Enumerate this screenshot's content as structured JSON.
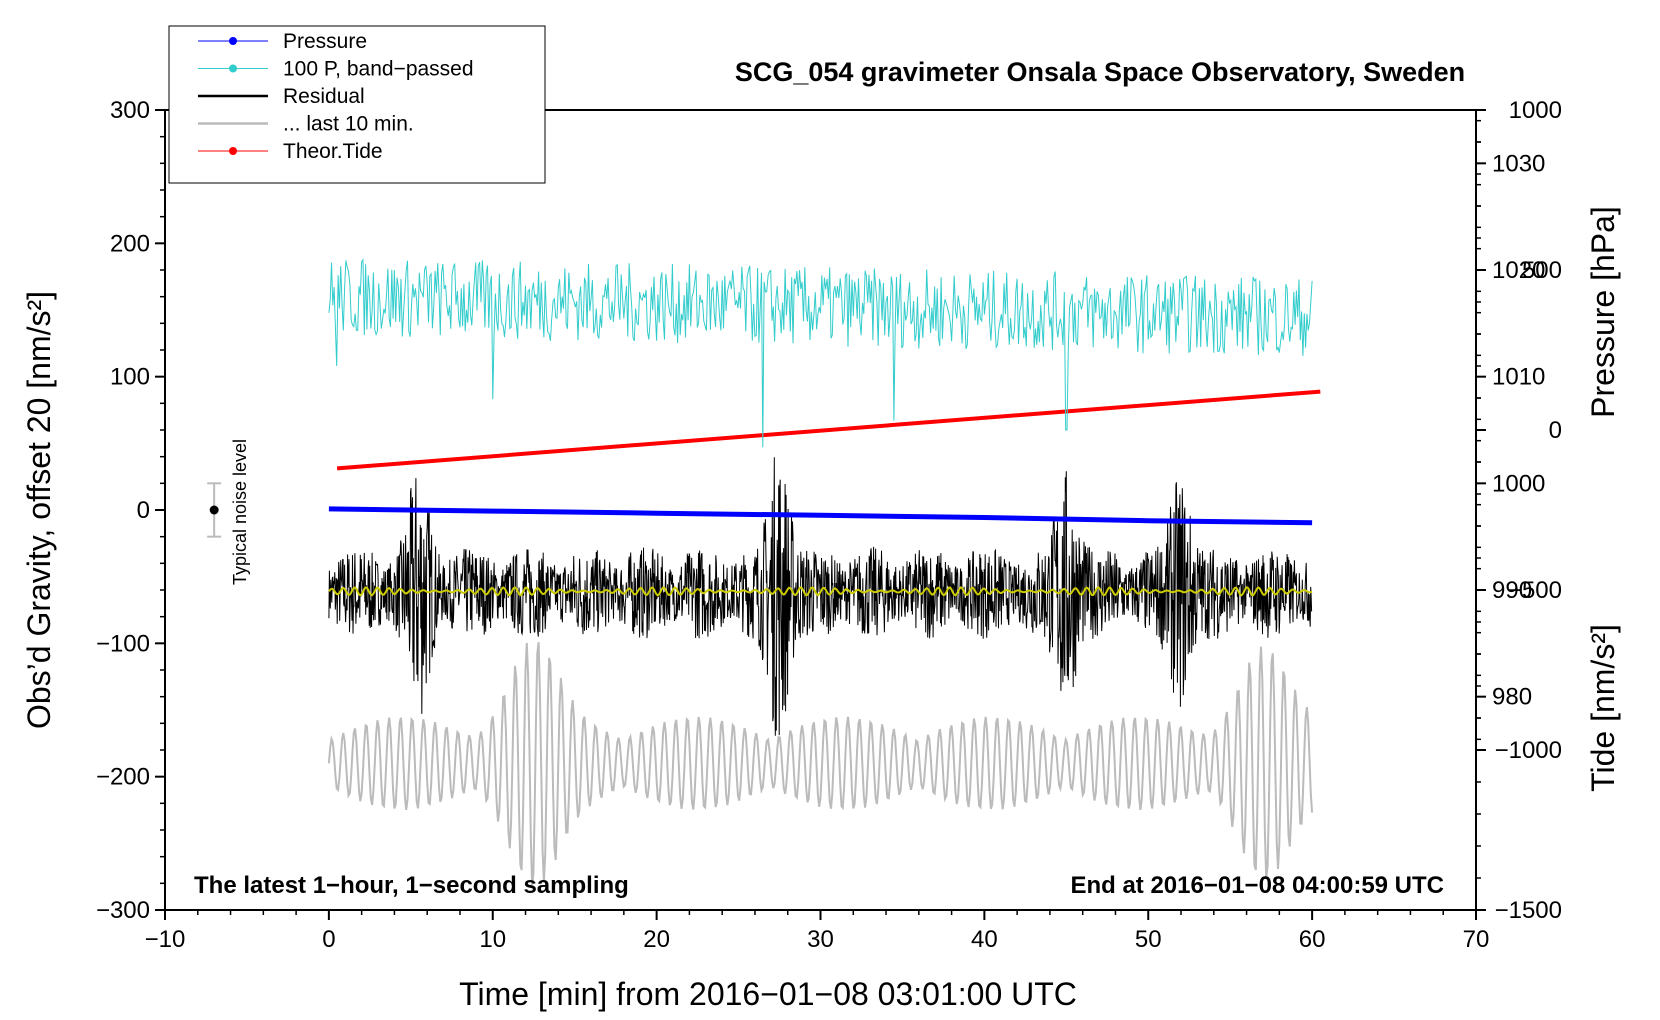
{
  "chart_data": {
    "type": "line",
    "title": "SCG_054 gravimeter Onsala Space Observatory, Sweden",
    "xlabel": "Time [min] from 2016−01−08 03:01:00 UTC",
    "ylabel_left": "Obs’d Gravity, offset 20 [nm/s²]",
    "ylabel_right_top": "Pressure [hPa]",
    "ylabel_right_bottom": "Tide [nm/s²]",
    "xlim": [
      -10,
      70
    ],
    "ylim_left": [
      -300,
      300
    ],
    "ylim_pressure": [
      960,
      1035
    ],
    "ylim_tide": [
      -1500,
      1000
    ],
    "x_ticks": [
      "−10",
      "0",
      "10",
      "20",
      "30",
      "40",
      "50",
      "60",
      "70"
    ],
    "y_left_ticks": [
      "300",
      "200",
      "100",
      "0",
      "−100",
      "−200",
      "−300"
    ],
    "pressure_ticks": [
      "1030",
      "1020",
      "1010",
      "1000",
      "990",
      "980"
    ],
    "tide_ticks": [
      "1000",
      "500",
      "0",
      "−500",
      "−1000",
      "−1500"
    ],
    "note_left": "The latest 1−hour, 1−second sampling",
    "note_right": "End at 2016−01−08 04:00:59 UTC",
    "noise_label": "Typical noise level",
    "noise_bar": {
      "x": -7,
      "center": 0,
      "half_range": 20
    },
    "legend": [
      {
        "name": "Pressure",
        "color": "#0000ff",
        "marker": true
      },
      {
        "name": "100 P, band−passed",
        "color": "#33cccc",
        "marker": true
      },
      {
        "name": "Residual",
        "color": "#000000",
        "marker": false
      },
      {
        "name": "... last 10 min.",
        "color": "#bbbbbb",
        "marker": false
      },
      {
        "name": "Theor.Tide",
        "color": "#ff0000",
        "marker": true
      }
    ],
    "series": {
      "pressure_hpa": {
        "color": "#0000ff",
        "x": [
          0,
          10,
          20,
          30,
          40,
          50,
          60
        ],
        "values": [
          997.6,
          997.4,
          997.2,
          997.0,
          996.8,
          996.5,
          996.3
        ]
      },
      "pressure_bandpassed": {
        "color": "#33cccc",
        "center": 160,
        "amplitude": 30,
        "x_range": [
          0,
          60
        ],
        "spikes": [
          {
            "x": 0.5,
            "y": 108
          },
          {
            "x": 10,
            "y": 83
          },
          {
            "x": 26.5,
            "y": 47
          },
          {
            "x": 34.5,
            "y": 67
          },
          {
            "x": 45,
            "y": 60
          }
        ]
      },
      "residual": {
        "color": "#000000",
        "center": -62,
        "amplitude": 35,
        "x_range": [
          0,
          60
        ],
        "bursts": [
          {
            "x": 5.5,
            "amp": 65
          },
          {
            "x": 27.5,
            "amp": 90
          },
          {
            "x": 45,
            "amp": 70
          },
          {
            "x": 52,
            "amp": 65
          }
        ]
      },
      "residual_smoothed": {
        "color": "#cccc00",
        "center": -61,
        "amplitude": 3,
        "x_range": [
          0,
          60
        ]
      },
      "last_10_min": {
        "color": "#bbbbbb",
        "center": -190,
        "amplitude": 35,
        "x_range": [
          0,
          60
        ],
        "bursts": [
          {
            "x": 12.5,
            "amp": 60
          },
          {
            "x": 57,
            "amp": 55
          }
        ]
      },
      "theoretical_tide": {
        "color": "#ff0000",
        "x": [
          0.5,
          60.5
        ],
        "values": [
          -120,
          120
        ]
      }
    }
  }
}
